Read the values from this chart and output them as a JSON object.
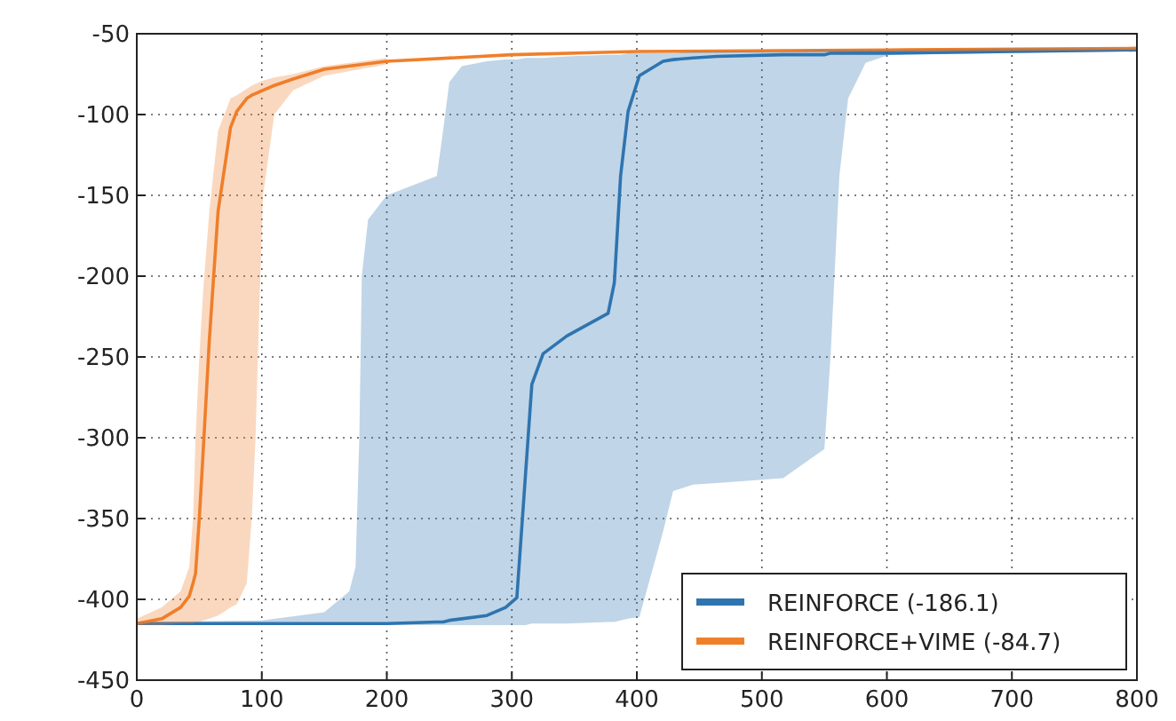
{
  "chart_data": {
    "type": "line",
    "xlim": [
      0,
      800
    ],
    "xticks": [
      0,
      100,
      200,
      300,
      400,
      500,
      600,
      700,
      800
    ],
    "ylim": [
      -450,
      -50
    ],
    "yticks": [
      -450,
      -400,
      -350,
      -300,
      -250,
      -200,
      -150,
      -100,
      -50
    ],
    "grid": true,
    "line_style": "solid",
    "marker": "none",
    "legend": "bottom right",
    "series": [
      {
        "name": "REINFORCE (-186.1)",
        "color": "#2f74b0",
        "x": [
          0,
          100,
          150,
          170,
          175,
          178,
          180,
          185,
          200,
          240,
          245,
          250,
          260,
          280,
          295,
          304,
          311,
          316,
          325,
          344,
          377,
          382,
          387,
          393,
          402,
          421,
          429,
          445,
          464,
          517,
          550,
          555,
          562,
          569,
          583,
          602,
          700,
          800
        ],
        "values": [
          -415,
          -415,
          -415,
          -415,
          -415,
          -415,
          -415,
          -415,
          -415,
          -414,
          -414,
          -413,
          -412,
          -410,
          -405,
          -399,
          -322,
          -267,
          -248,
          -237,
          -223,
          -204,
          -138,
          -98,
          -76,
          -67,
          -66,
          -65,
          -64,
          -63,
          -63,
          -62,
          -62,
          -62,
          -62,
          -62,
          -61,
          -60
        ],
        "upper": [
          -414,
          -413,
          -408,
          -395,
          -380,
          -300,
          -200,
          -165,
          -150,
          -138,
          -110,
          -80,
          -70,
          -67,
          -66,
          -66,
          -65,
          -65,
          -65,
          -64,
          -63,
          -63,
          -63,
          -62,
          -62,
          -62,
          -62,
          -61,
          -61,
          -61,
          -60,
          -60,
          -60,
          -60,
          -60,
          -60,
          -59,
          -59
        ],
        "lower": [
          -416,
          -416,
          -416,
          -416,
          -416,
          -416,
          -416,
          -416,
          -416,
          -416,
          -416,
          -416,
          -416,
          -416,
          -416,
          -416,
          -416,
          -415,
          -415,
          -415,
          -414,
          -414,
          -413,
          -412,
          -411,
          -358,
          -333,
          -329,
          -328,
          -325,
          -307,
          -249,
          -138,
          -90,
          -68,
          -63,
          -62,
          -61
        ]
      },
      {
        "name": "REINFORCE+VIME (-84.7)",
        "color": "#f07f2a",
        "x": [
          0,
          20,
          35,
          42,
          45,
          47,
          50,
          53,
          58,
          65,
          75,
          80,
          88,
          92,
          95,
          98,
          101,
          110,
          125,
          150,
          200,
          300,
          400,
          600,
          800
        ],
        "values": [
          -415,
          -412,
          -405,
          -398,
          -390,
          -384,
          -350,
          -310,
          -240,
          -160,
          -108,
          -98,
          -90,
          -88,
          -87,
          -86,
          -85,
          -82,
          -78,
          -72,
          -67,
          -63,
          -61,
          -60,
          -59
        ],
        "upper": [
          -412,
          -405,
          -395,
          -380,
          -350,
          -300,
          -250,
          -210,
          -160,
          -110,
          -90,
          -88,
          -84,
          -82,
          -81,
          -80,
          -79,
          -77,
          -75,
          -70,
          -65,
          null,
          null,
          null,
          null
        ],
        "lower": [
          -416,
          -416,
          -415,
          -415,
          -415,
          -414,
          -414,
          -413,
          -412,
          -410,
          -405,
          -403,
          -390,
          -350,
          -300,
          -220,
          -150,
          -100,
          -85,
          -76,
          -69,
          null,
          null,
          null,
          null
        ]
      }
    ]
  }
}
